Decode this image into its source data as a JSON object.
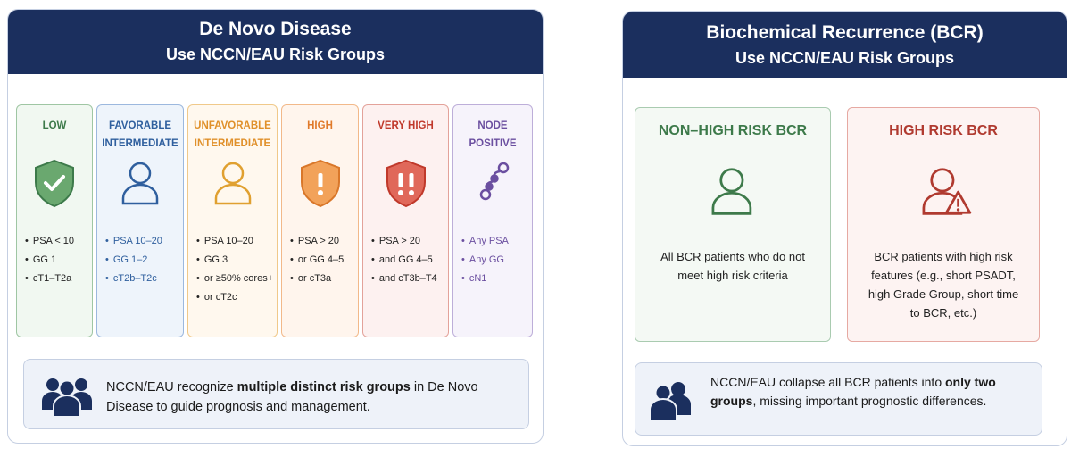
{
  "left_panel": {
    "title": "De Novo Disease",
    "subtitle": "Use NCCN/EAU Risk Groups",
    "groups": [
      {
        "label": [
          "LOW"
        ],
        "bullets": [
          "PSA < 10",
          "GG 1",
          "cT1–T2a"
        ]
      },
      {
        "label": [
          "FAVORABLE",
          "INTERMEDIATE"
        ],
        "bullets": [
          "PSA 10–20",
          "GG 1–2",
          "cT2b–T2c"
        ]
      },
      {
        "label": [
          "UNFAVORABLE",
          "INTERMEDIATE"
        ],
        "bullets": [
          "PSA 10–20",
          "GG 3",
          "or ≥50% cores+",
          "or cT2c"
        ]
      },
      {
        "label": [
          "HIGH"
        ],
        "bullets": [
          "PSA > 20",
          "or GG 4–5",
          "or cT3a"
        ]
      },
      {
        "label": [
          "VERY HIGH"
        ],
        "bullets": [
          "PSA > 20",
          "and GG 4–5",
          "and cT3b–T4"
        ]
      },
      {
        "label": [
          "NODE",
          "POSITIVE"
        ],
        "bullets": [
          "Any PSA",
          "Any GG",
          "cN1"
        ]
      }
    ],
    "footer": [
      "NCCN/EAU recognize ",
      "multiple distinct risk groups",
      " in De Novo Disease to guide prognosis and management."
    ]
  },
  "right_panel": {
    "title": "Biochemical Recurrence (BCR)",
    "subtitle": "Use NCCN/EAU Risk Groups",
    "groups": [
      {
        "label": "NON–HIGH RISK BCR",
        "text": "All BCR patients who do not meet high risk criteria"
      },
      {
        "label": "HIGH RISK BCR",
        "text": "BCR patients with high risk features (e.g., short PSADT, high Grade Group, short time to BCR, etc.)"
      }
    ],
    "footer": [
      "NCCN/EAU collapse all BCR patients into ",
      "only two groups",
      ", missing important prognostic differences."
    ]
  }
}
